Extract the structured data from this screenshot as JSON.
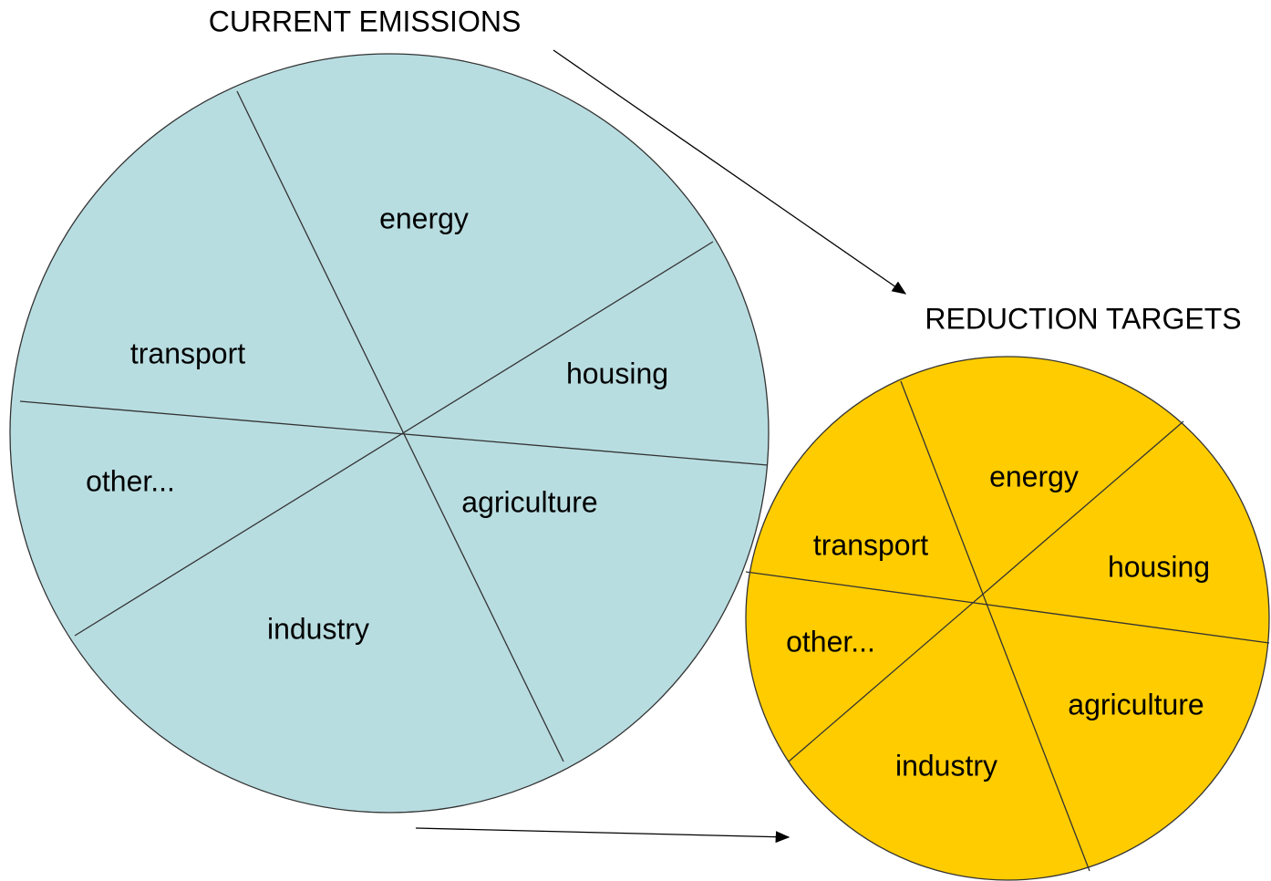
{
  "diagrams": [
    {
      "title": "CURRENT EMISSIONS",
      "segments": [
        "energy",
        "housing",
        "agriculture",
        "industry",
        "other...",
        "transport"
      ]
    },
    {
      "title": "REDUCTION TARGETS",
      "segments": [
        "energy",
        "housing",
        "agriculture",
        "industry",
        "other...",
        "transport"
      ]
    }
  ]
}
